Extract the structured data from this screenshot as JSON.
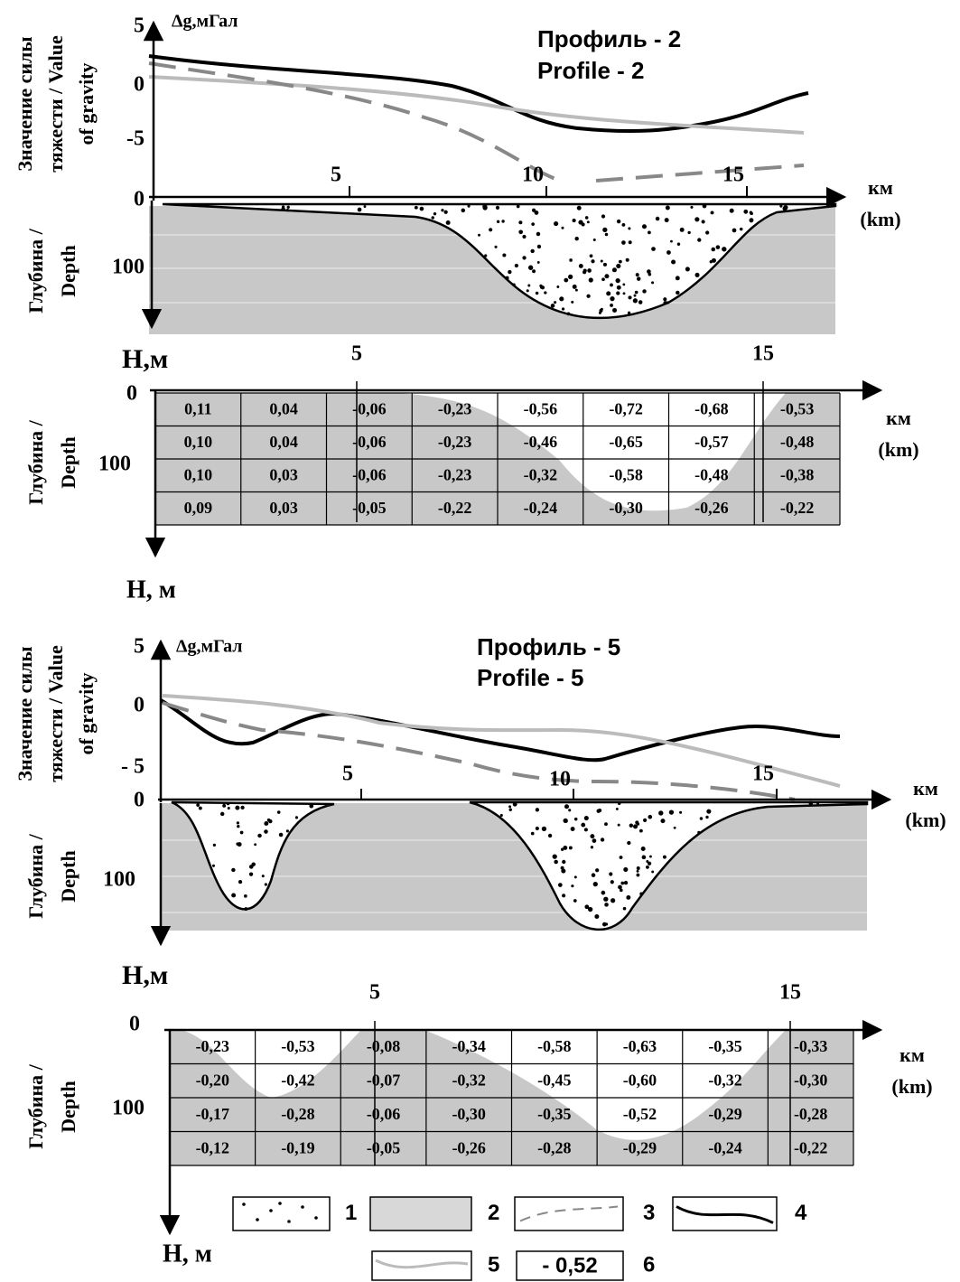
{
  "profiles": [
    {
      "title": [
        "Профиль - 2",
        "Profile - 2"
      ],
      "gravity_axis_label": [
        "Значение силы",
        "тяжести / Value",
        "of gravity"
      ],
      "gravity_unit": "Δg,мГал",
      "gravity_ticks": [
        "5",
        "0",
        "-5"
      ],
      "distance_ticks": [
        "5",
        "10",
        "15"
      ],
      "distance_unit": [
        "км",
        "(km)"
      ],
      "depth_axis_label": [
        "Глубина /",
        "Depth"
      ],
      "depth_ticks": [
        "0",
        "100"
      ],
      "depth_unit": "Н,м",
      "table": {
        "distance_ticks": [
          "5",
          "15"
        ],
        "depth_ticks": [
          "0",
          "100"
        ],
        "depth_axis_label": [
          "Глубина /",
          "Depth"
        ],
        "distance_unit": [
          "км",
          "(km)"
        ],
        "depth_unit": "Н, м",
        "rows": [
          [
            "0,11",
            "0,04",
            "-0,06",
            "-0,23",
            "-0,56",
            "-0,72",
            "-0,68",
            "-0,53"
          ],
          [
            "0,10",
            "0,04",
            "-0,06",
            "-0,23",
            "-0,46",
            "-0,65",
            "-0,57",
            "-0,48"
          ],
          [
            "0,10",
            "0,03",
            "-0,06",
            "-0,23",
            "-0,32",
            "-0,58",
            "-0,48",
            "-0,38"
          ],
          [
            "0,09",
            "0,03",
            "-0,05",
            "-0,22",
            "-0,24",
            "-0,30",
            "-0,26",
            "-0,22"
          ]
        ]
      }
    },
    {
      "title": [
        "Профиль - 5",
        "Profile - 5"
      ],
      "gravity_axis_label": [
        "Значение силы",
        "тяжести / Value",
        "of gravity"
      ],
      "gravity_unit": "Δg,мГал",
      "gravity_ticks": [
        "5",
        "0",
        "- 5"
      ],
      "distance_ticks": [
        "5",
        "10",
        "15"
      ],
      "distance_unit": [
        "км",
        "(km)"
      ],
      "depth_axis_label": [
        "Глубина /",
        "Depth"
      ],
      "depth_ticks": [
        "0",
        "100"
      ],
      "depth_unit": "Н,м",
      "table": {
        "distance_ticks": [
          "5",
          "15"
        ],
        "depth_ticks": [
          "0",
          "100"
        ],
        "depth_axis_label": [
          "Глубина /",
          "Depth"
        ],
        "distance_unit": [
          "км",
          "(km)"
        ],
        "depth_unit": "Н, м",
        "rows": [
          [
            "-0,23",
            "-0,53",
            "-0,08",
            "-0,34",
            "-0,58",
            "-0,63",
            "-0,35",
            "-0,33"
          ],
          [
            "-0,20",
            "-0,42",
            "-0,07",
            "-0,32",
            "-0,45",
            "-0,60",
            "-0,32",
            "-0,30"
          ],
          [
            "-0,17",
            "-0,28",
            "-0,06",
            "-0,30",
            "-0,35",
            "-0,52",
            "-0,29",
            "-0,28"
          ],
          [
            "-0,12",
            "-0,19",
            "-0,05",
            "-0,26",
            "-0,28",
            "-0,29",
            "-0,24",
            "-0,22"
          ]
        ]
      }
    }
  ],
  "legend": [
    {
      "label": "1"
    },
    {
      "label": "2"
    },
    {
      "label": "3"
    },
    {
      "label": "4"
    },
    {
      "label": "5"
    },
    {
      "label": "6",
      "sample": "- 0,52"
    }
  ]
}
